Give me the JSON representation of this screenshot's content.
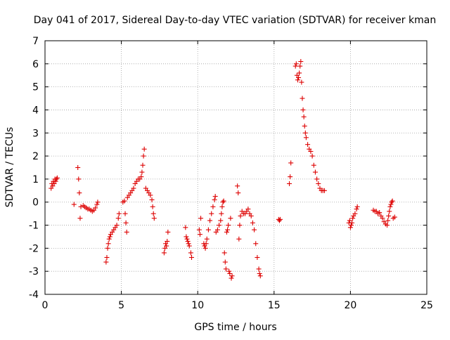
{
  "chart_data": {
    "type": "scatter",
    "title": "Day 041 of 2017, Sidereal Day-to-day VTEC variation (SDTVAR) for receiver kman",
    "xlabel": "GPS time / hours",
    "ylabel": "SDTVAR / TECUs",
    "xlim": [
      0,
      25
    ],
    "ylim": [
      -4,
      7
    ],
    "xticks": [
      0,
      5,
      10,
      15,
      20,
      25
    ],
    "yticks": [
      -4,
      -3,
      -2,
      -1,
      0,
      1,
      2,
      3,
      4,
      5,
      6,
      7
    ],
    "grid": true,
    "marker": "plus",
    "color": "#dd0000",
    "series": [
      {
        "name": "SDTVAR",
        "points": [
          [
            0.4,
            0.6
          ],
          [
            0.45,
            0.8
          ],
          [
            0.5,
            0.7
          ],
          [
            0.55,
            0.9
          ],
          [
            0.6,
            0.8
          ],
          [
            0.65,
            1.0
          ],
          [
            0.7,
            0.9
          ],
          [
            0.75,
            1.0
          ],
          [
            0.8,
            1.05
          ],
          [
            1.9,
            -0.1
          ],
          [
            2.15,
            1.5
          ],
          [
            2.2,
            1.0
          ],
          [
            2.25,
            0.4
          ],
          [
            2.3,
            -0.7
          ],
          [
            2.35,
            -0.2
          ],
          [
            2.5,
            -0.15
          ],
          [
            2.6,
            -0.2
          ],
          [
            2.7,
            -0.25
          ],
          [
            2.8,
            -0.3
          ],
          [
            2.9,
            -0.3
          ],
          [
            3.0,
            -0.35
          ],
          [
            3.1,
            -0.4
          ],
          [
            3.2,
            -0.35
          ],
          [
            3.3,
            -0.25
          ],
          [
            3.4,
            -0.1
          ],
          [
            3.45,
            0.0
          ],
          [
            4.0,
            -2.6
          ],
          [
            4.05,
            -2.4
          ],
          [
            4.1,
            -2.0
          ],
          [
            4.15,
            -1.8
          ],
          [
            4.2,
            -1.6
          ],
          [
            4.25,
            -1.5
          ],
          [
            4.3,
            -1.4
          ],
          [
            4.4,
            -1.3
          ],
          [
            4.5,
            -1.2
          ],
          [
            4.6,
            -1.1
          ],
          [
            4.7,
            -1.0
          ],
          [
            4.8,
            -0.7
          ],
          [
            4.85,
            -0.5
          ],
          [
            5.1,
            0.0
          ],
          [
            5.2,
            0.05
          ],
          [
            5.25,
            -0.5
          ],
          [
            5.3,
            -0.9
          ],
          [
            5.35,
            -1.3
          ],
          [
            5.4,
            0.2
          ],
          [
            5.5,
            0.3
          ],
          [
            5.6,
            0.4
          ],
          [
            5.7,
            0.5
          ],
          [
            5.8,
            0.6
          ],
          [
            5.9,
            0.8
          ],
          [
            6.0,
            0.9
          ],
          [
            6.1,
            1.0
          ],
          [
            6.2,
            1.0
          ],
          [
            6.3,
            1.1
          ],
          [
            6.35,
            1.3
          ],
          [
            6.4,
            1.6
          ],
          [
            6.45,
            2.0
          ],
          [
            6.5,
            2.3
          ],
          [
            6.6,
            0.6
          ],
          [
            6.7,
            0.5
          ],
          [
            6.8,
            0.4
          ],
          [
            6.9,
            0.3
          ],
          [
            7.0,
            0.1
          ],
          [
            7.05,
            -0.2
          ],
          [
            7.1,
            -0.5
          ],
          [
            7.15,
            -0.7
          ],
          [
            7.8,
            -2.2
          ],
          [
            7.85,
            -2.0
          ],
          [
            7.9,
            -1.8
          ],
          [
            7.95,
            -1.9
          ],
          [
            8.0,
            -1.7
          ],
          [
            8.05,
            -1.3
          ],
          [
            9.2,
            -1.1
          ],
          [
            9.25,
            -1.5
          ],
          [
            9.3,
            -1.6
          ],
          [
            9.35,
            -1.7
          ],
          [
            9.4,
            -1.8
          ],
          [
            9.45,
            -1.9
          ],
          [
            9.55,
            -2.2
          ],
          [
            9.6,
            -2.4
          ],
          [
            10.1,
            -1.2
          ],
          [
            10.15,
            -1.4
          ],
          [
            10.2,
            -0.7
          ],
          [
            10.4,
            -1.8
          ],
          [
            10.45,
            -1.9
          ],
          [
            10.5,
            -2.0
          ],
          [
            10.55,
            -1.8
          ],
          [
            10.6,
            -1.6
          ],
          [
            10.7,
            -1.2
          ],
          [
            10.8,
            -0.8
          ],
          [
            10.9,
            -0.5
          ],
          [
            11.0,
            -0.2
          ],
          [
            11.1,
            0.1
          ],
          [
            11.15,
            0.25
          ],
          [
            11.2,
            -1.3
          ],
          [
            11.3,
            -1.2
          ],
          [
            11.4,
            -1.0
          ],
          [
            11.5,
            -0.8
          ],
          [
            11.55,
            -0.5
          ],
          [
            11.6,
            -0.2
          ],
          [
            11.65,
            0.0
          ],
          [
            11.7,
            0.05
          ],
          [
            11.75,
            -2.2
          ],
          [
            11.8,
            -2.6
          ],
          [
            11.85,
            -2.9
          ],
          [
            11.9,
            -1.3
          ],
          [
            11.95,
            -1.2
          ],
          [
            12.0,
            -1.0
          ],
          [
            12.05,
            -3.0
          ],
          [
            12.1,
            -3.1
          ],
          [
            12.15,
            -0.7
          ],
          [
            12.2,
            -3.3
          ],
          [
            12.25,
            -3.2
          ],
          [
            12.6,
            0.7
          ],
          [
            12.65,
            0.4
          ],
          [
            12.7,
            -1.6
          ],
          [
            12.75,
            -1.0
          ],
          [
            12.8,
            -0.6
          ],
          [
            12.9,
            -0.4
          ],
          [
            13.0,
            -0.5
          ],
          [
            13.1,
            -0.5
          ],
          [
            13.2,
            -0.4
          ],
          [
            13.3,
            -0.3
          ],
          [
            13.4,
            -0.5
          ],
          [
            13.5,
            -0.6
          ],
          [
            13.6,
            -0.9
          ],
          [
            13.7,
            -1.2
          ],
          [
            13.8,
            -1.8
          ],
          [
            13.9,
            -2.4
          ],
          [
            14.0,
            -2.9
          ],
          [
            14.05,
            -3.1
          ],
          [
            14.1,
            -3.2
          ],
          [
            15.3,
            -0.75
          ],
          [
            15.35,
            -0.8
          ],
          [
            15.4,
            -0.75
          ],
          [
            16.0,
            0.8
          ],
          [
            16.05,
            1.1
          ],
          [
            16.1,
            1.7
          ],
          [
            16.4,
            5.9
          ],
          [
            16.45,
            6.0
          ],
          [
            16.5,
            5.5
          ],
          [
            16.55,
            5.3
          ],
          [
            16.6,
            5.4
          ],
          [
            16.65,
            5.6
          ],
          [
            16.7,
            5.9
          ],
          [
            16.75,
            6.1
          ],
          [
            16.8,
            5.2
          ],
          [
            16.85,
            4.5
          ],
          [
            16.9,
            4.0
          ],
          [
            16.95,
            3.7
          ],
          [
            17.0,
            3.3
          ],
          [
            17.05,
            3.0
          ],
          [
            17.1,
            2.8
          ],
          [
            17.2,
            2.5
          ],
          [
            17.3,
            2.3
          ],
          [
            17.4,
            2.2
          ],
          [
            17.5,
            2.0
          ],
          [
            17.6,
            1.6
          ],
          [
            17.7,
            1.3
          ],
          [
            17.8,
            1.0
          ],
          [
            17.9,
            0.8
          ],
          [
            18.0,
            0.6
          ],
          [
            18.1,
            0.5
          ],
          [
            18.2,
            0.5
          ],
          [
            18.3,
            0.5
          ],
          [
            19.9,
            -0.9
          ],
          [
            19.95,
            -0.8
          ],
          [
            20.0,
            -1.1
          ],
          [
            20.05,
            -1.0
          ],
          [
            20.1,
            -0.9
          ],
          [
            20.15,
            -0.7
          ],
          [
            20.2,
            -0.6
          ],
          [
            20.3,
            -0.5
          ],
          [
            20.4,
            -0.3
          ],
          [
            20.45,
            -0.2
          ],
          [
            21.5,
            -0.35
          ],
          [
            21.6,
            -0.4
          ],
          [
            21.7,
            -0.4
          ],
          [
            21.8,
            -0.5
          ],
          [
            21.9,
            -0.45
          ],
          [
            22.0,
            -0.6
          ],
          [
            22.1,
            -0.7
          ],
          [
            22.2,
            -0.85
          ],
          [
            22.3,
            -0.95
          ],
          [
            22.4,
            -1.0
          ],
          [
            22.45,
            -0.8
          ],
          [
            22.5,
            -0.6
          ],
          [
            22.55,
            -0.4
          ],
          [
            22.6,
            -0.2
          ],
          [
            22.65,
            -0.1
          ],
          [
            22.7,
            0.0
          ],
          [
            22.75,
            0.05
          ],
          [
            22.8,
            -0.7
          ],
          [
            22.9,
            -0.65
          ]
        ]
      }
    ]
  }
}
